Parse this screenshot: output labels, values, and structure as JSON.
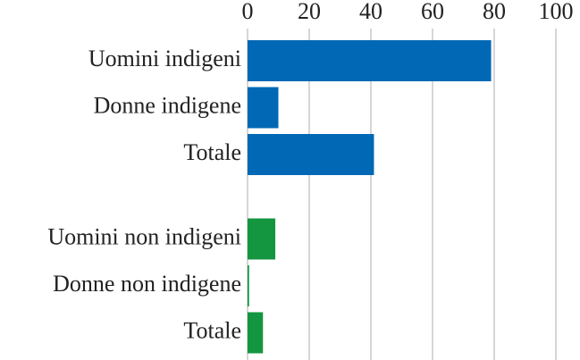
{
  "chart_data": {
    "type": "bar",
    "orientation": "horizontal",
    "groups": [
      {
        "color": "#0068b4",
        "categories": [
          "Uomini indigeni",
          "Donne indigene",
          "Totale"
        ],
        "values": [
          79,
          10,
          41
        ]
      },
      {
        "color": "#13963f",
        "categories": [
          "Uomini non indigeni",
          "Donne non indigene",
          "Totale"
        ],
        "values": [
          9,
          0.5,
          5
        ]
      }
    ],
    "xlim": [
      0,
      100
    ],
    "xticks": [
      0,
      20,
      40,
      60,
      80,
      100
    ],
    "grid": true
  }
}
